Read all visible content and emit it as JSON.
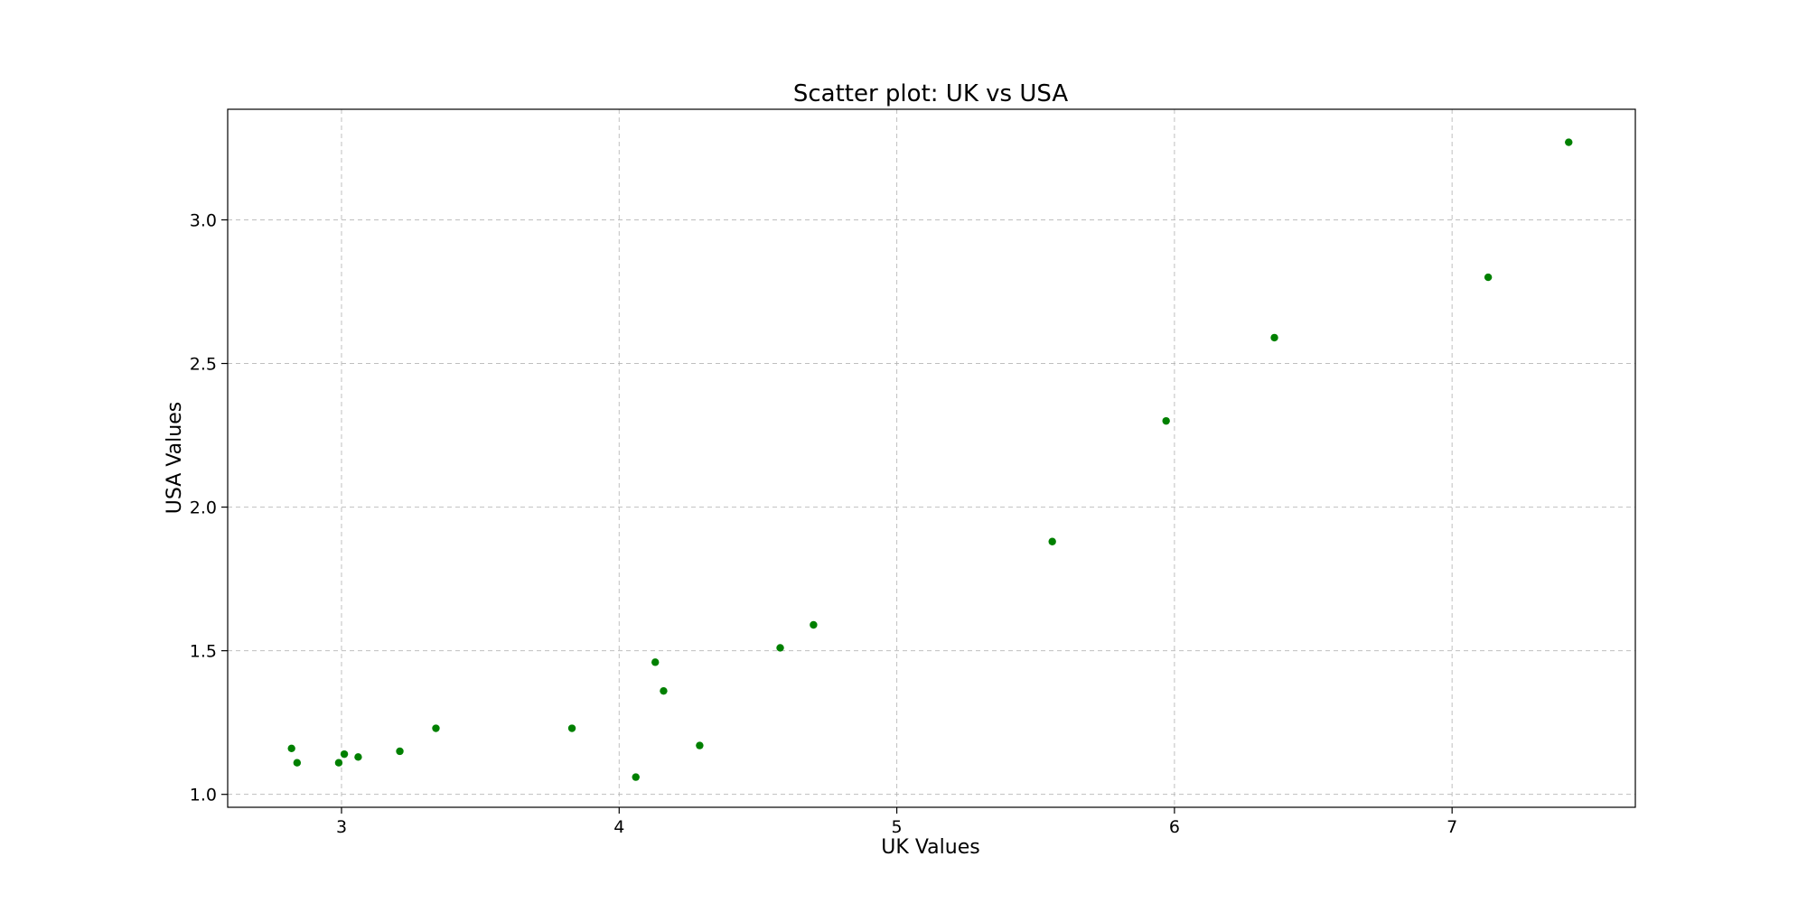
{
  "chart_data": {
    "type": "scatter",
    "title": "Scatter plot: UK vs USA",
    "xlabel": "UK Values",
    "ylabel": "USA Values",
    "xlim": [
      2.59,
      7.66
    ],
    "ylim": [
      0.955,
      3.385
    ],
    "xticks": [
      3,
      4,
      5,
      6,
      7
    ],
    "xtick_labels": [
      "3",
      "4",
      "5",
      "6",
      "7"
    ],
    "yticks": [
      1.0,
      1.5,
      2.0,
      2.5,
      3.0
    ],
    "ytick_labels": [
      "1.0",
      "1.5",
      "2.0",
      "2.5",
      "3.0"
    ],
    "grid": true,
    "marker_color": "#008000",
    "series": [
      {
        "name": "UK vs USA",
        "x": [
          2.82,
          2.84,
          2.99,
          3.01,
          3.06,
          3.21,
          3.34,
          3.83,
          4.06,
          4.13,
          4.16,
          4.29,
          4.58,
          4.7,
          5.56,
          5.97,
          6.36,
          7.13,
          7.42
        ],
        "y": [
          1.16,
          1.11,
          1.11,
          1.14,
          1.13,
          1.15,
          1.23,
          1.23,
          1.06,
          1.46,
          1.36,
          1.17,
          1.51,
          1.59,
          1.88,
          2.3,
          2.59,
          2.8,
          3.27
        ]
      }
    ]
  }
}
